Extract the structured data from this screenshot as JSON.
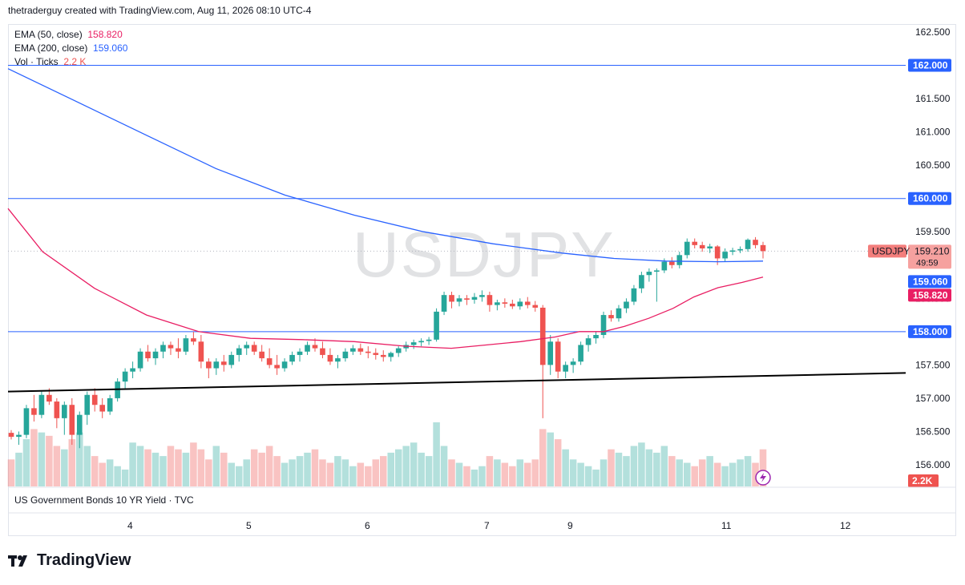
{
  "header": {
    "attribution": "thetraderguy created with TradingView.com, Aug 11, 2026 08:10 UTC-4"
  },
  "symbol": {
    "watermark": "USDJPY",
    "tag": "USDJPY",
    "subtitle": "US Government Bonds 10 YR Yield · TVC"
  },
  "legend": {
    "ema50_label": "EMA (50, close)",
    "ema50_value": "158.820",
    "ema200_label": "EMA (200, close)",
    "ema200_value": "159.060",
    "vol_label": "Vol · Ticks",
    "vol_value": "2.2 K"
  },
  "price_axis": {
    "ticks": [
      "162.500",
      "162.000",
      "161.500",
      "161.000",
      "160.500",
      "160.000",
      "159.500",
      "159.210",
      "49:59",
      "159.060",
      "158.820",
      "158.500",
      "158.000",
      "157.500",
      "157.000",
      "156.500",
      "156.000"
    ],
    "vol_badge": "2.2K"
  },
  "time_axis": {
    "ticks": [
      "4",
      "5",
      "6",
      "7",
      "9",
      "11",
      "12"
    ]
  },
  "logo": {
    "text": "TradingView"
  },
  "colors": {
    "up": "#26a69a",
    "down": "#ef5350",
    "ema50": "#e91e63",
    "ema200": "#2962ff",
    "hline": "#2962ff"
  },
  "chart_data": {
    "type": "candlestick",
    "y_range": [
      155.7,
      162.7
    ],
    "horizontal_lines": [
      162.0,
      160.0,
      158.0
    ],
    "last_price": 159.21,
    "candles": [
      [
        156.48,
        156.52,
        156.38,
        156.42
      ],
      [
        156.42,
        156.5,
        156.3,
        156.45
      ],
      [
        156.45,
        156.9,
        156.4,
        156.85
      ],
      [
        156.85,
        157.05,
        156.65,
        156.75
      ],
      [
        156.75,
        157.1,
        156.7,
        157.05
      ],
      [
        157.05,
        157.15,
        156.9,
        156.95
      ],
      [
        156.95,
        157.0,
        156.55,
        156.7
      ],
      [
        156.7,
        156.95,
        156.45,
        156.9
      ],
      [
        156.9,
        157.0,
        156.3,
        156.45
      ],
      [
        156.45,
        156.8,
        156.25,
        156.75
      ],
      [
        156.75,
        157.1,
        156.6,
        157.05
      ],
      [
        157.05,
        157.15,
        156.8,
        156.9
      ],
      [
        156.9,
        157.0,
        156.7,
        156.8
      ],
      [
        156.8,
        157.05,
        156.75,
        157.0
      ],
      [
        157.0,
        157.3,
        156.95,
        157.25
      ],
      [
        157.25,
        157.45,
        157.15,
        157.4
      ],
      [
        157.4,
        157.55,
        157.3,
        157.45
      ],
      [
        157.45,
        157.75,
        157.4,
        157.7
      ],
      [
        157.7,
        157.8,
        157.55,
        157.6
      ],
      [
        157.6,
        157.75,
        157.5,
        157.7
      ],
      [
        157.7,
        157.85,
        157.6,
        157.8
      ],
      [
        157.8,
        157.85,
        157.65,
        157.75
      ],
      [
        157.75,
        157.9,
        157.6,
        157.7
      ],
      [
        157.7,
        157.95,
        157.65,
        157.9
      ],
      [
        157.9,
        158.0,
        157.8,
        157.85
      ],
      [
        157.85,
        157.95,
        157.45,
        157.55
      ],
      [
        157.55,
        157.6,
        157.3,
        157.45
      ],
      [
        157.45,
        157.6,
        157.35,
        157.55
      ],
      [
        157.55,
        157.65,
        157.4,
        157.5
      ],
      [
        157.5,
        157.7,
        157.45,
        157.65
      ],
      [
        157.65,
        157.8,
        157.55,
        157.75
      ],
      [
        157.75,
        157.85,
        157.65,
        157.8
      ],
      [
        157.8,
        157.85,
        157.65,
        157.7
      ],
      [
        157.7,
        157.8,
        157.55,
        157.6
      ],
      [
        157.6,
        157.75,
        157.45,
        157.5
      ],
      [
        157.5,
        157.65,
        157.35,
        157.45
      ],
      [
        157.45,
        157.6,
        157.4,
        157.55
      ],
      [
        157.55,
        157.7,
        157.5,
        157.65
      ],
      [
        157.65,
        157.75,
        157.55,
        157.7
      ],
      [
        157.7,
        157.85,
        157.65,
        157.8
      ],
      [
        157.8,
        157.9,
        157.7,
        157.75
      ],
      [
        157.75,
        157.85,
        157.6,
        157.65
      ],
      [
        157.65,
        157.75,
        157.5,
        157.55
      ],
      [
        157.55,
        157.65,
        157.45,
        157.6
      ],
      [
        157.6,
        157.75,
        157.55,
        157.7
      ],
      [
        157.7,
        157.8,
        157.65,
        157.75
      ],
      [
        157.75,
        157.82,
        157.65,
        157.7
      ],
      [
        157.7,
        157.78,
        157.6,
        157.68
      ],
      [
        157.68,
        157.75,
        157.58,
        157.65
      ],
      [
        157.65,
        157.72,
        157.55,
        157.62
      ],
      [
        157.62,
        157.7,
        157.55,
        157.68
      ],
      [
        157.68,
        157.78,
        157.62,
        157.75
      ],
      [
        157.75,
        157.85,
        157.7,
        157.8
      ],
      [
        157.8,
        157.88,
        157.74,
        157.84
      ],
      [
        157.84,
        157.9,
        157.78,
        157.86
      ],
      [
        157.86,
        157.92,
        157.8,
        157.88
      ],
      [
        157.88,
        158.35,
        157.85,
        158.3
      ],
      [
        158.3,
        158.6,
        158.25,
        158.55
      ],
      [
        158.55,
        158.6,
        158.35,
        158.45
      ],
      [
        158.45,
        158.55,
        158.38,
        158.5
      ],
      [
        158.5,
        158.55,
        158.4,
        158.48
      ],
      [
        158.48,
        158.58,
        158.42,
        158.52
      ],
      [
        158.52,
        158.62,
        158.45,
        158.55
      ],
      [
        158.55,
        158.6,
        158.3,
        158.4
      ],
      [
        158.4,
        158.48,
        158.32,
        158.44
      ],
      [
        158.44,
        158.5,
        158.36,
        158.42
      ],
      [
        158.42,
        158.48,
        158.34,
        158.38
      ],
      [
        158.38,
        158.5,
        158.33,
        158.45
      ],
      [
        158.45,
        158.52,
        158.35,
        158.4
      ],
      [
        158.4,
        158.46,
        158.3,
        158.36
      ],
      [
        158.36,
        158.4,
        156.7,
        157.5
      ],
      [
        157.5,
        157.95,
        157.35,
        157.85
      ],
      [
        157.85,
        157.9,
        157.3,
        157.4
      ],
      [
        157.4,
        157.55,
        157.3,
        157.5
      ],
      [
        157.5,
        157.6,
        157.38,
        157.55
      ],
      [
        157.55,
        157.85,
        157.5,
        157.8
      ],
      [
        157.8,
        157.95,
        157.7,
        157.9
      ],
      [
        157.9,
        158.0,
        157.82,
        157.95
      ],
      [
        157.95,
        158.3,
        157.9,
        158.25
      ],
      [
        158.25,
        158.32,
        158.15,
        158.2
      ],
      [
        158.2,
        158.4,
        158.15,
        158.35
      ],
      [
        158.35,
        158.5,
        158.28,
        158.45
      ],
      [
        158.45,
        158.7,
        158.4,
        158.65
      ],
      [
        158.65,
        158.9,
        158.58,
        158.85
      ],
      [
        158.85,
        158.95,
        158.75,
        158.9
      ],
      [
        158.9,
        158.95,
        158.45,
        158.92
      ],
      [
        158.92,
        159.1,
        158.88,
        159.05
      ],
      [
        159.05,
        159.12,
        158.95,
        159.0
      ],
      [
        159.0,
        159.2,
        158.95,
        159.15
      ],
      [
        159.15,
        159.4,
        159.1,
        159.35
      ],
      [
        159.35,
        159.4,
        159.25,
        159.3
      ],
      [
        159.3,
        159.35,
        159.2,
        159.25
      ],
      [
        159.25,
        159.32,
        159.18,
        159.28
      ],
      [
        159.28,
        159.3,
        159.0,
        159.1
      ],
      [
        159.1,
        159.25,
        159.05,
        159.2
      ],
      [
        159.2,
        159.26,
        159.15,
        159.22
      ],
      [
        159.22,
        159.28,
        159.18,
        159.24
      ],
      [
        159.24,
        159.4,
        159.2,
        159.38
      ],
      [
        159.38,
        159.42,
        159.25,
        159.3
      ],
      [
        159.3,
        159.35,
        159.1,
        159.21
      ]
    ],
    "volume": [
      40,
      50,
      70,
      85,
      80,
      75,
      60,
      55,
      70,
      80,
      60,
      45,
      35,
      40,
      30,
      25,
      65,
      60,
      55,
      50,
      45,
      60,
      55,
      50,
      65,
      55,
      40,
      60,
      50,
      35,
      30,
      40,
      55,
      50,
      60,
      45,
      35,
      40,
      45,
      50,
      55,
      40,
      35,
      45,
      40,
      30,
      35,
      30,
      40,
      45,
      50,
      55,
      60,
      65,
      50,
      45,
      95,
      60,
      40,
      35,
      30,
      25,
      30,
      45,
      40,
      35,
      30,
      40,
      35,
      40,
      85,
      80,
      70,
      55,
      40,
      35,
      30,
      25,
      40,
      55,
      50,
      45,
      60,
      65,
      55,
      50,
      60,
      45,
      40,
      35,
      30,
      40,
      45,
      35,
      30,
      35,
      40,
      45,
      35,
      55
    ],
    "ema50_visual": [
      [
        0,
        159.85
      ],
      [
        10,
        159.2
      ],
      [
        25,
        158.65
      ],
      [
        40,
        158.25
      ],
      [
        55,
        158.0
      ],
      [
        70,
        157.9
      ],
      [
        85,
        157.88
      ],
      [
        100,
        157.85
      ],
      [
        115,
        157.78
      ],
      [
        128,
        157.75
      ],
      [
        138,
        157.8
      ],
      [
        148,
        157.85
      ],
      [
        158,
        157.92
      ],
      [
        165,
        158.0
      ],
      [
        172,
        158.0
      ],
      [
        178,
        158.08
      ],
      [
        185,
        158.2
      ],
      [
        192,
        158.35
      ],
      [
        198,
        158.52
      ],
      [
        205,
        158.66
      ],
      [
        212,
        158.74
      ],
      [
        218,
        158.82
      ]
    ],
    "ema200_visual": [
      [
        0,
        161.95
      ],
      [
        20,
        161.45
      ],
      [
        40,
        160.95
      ],
      [
        60,
        160.45
      ],
      [
        80,
        160.05
      ],
      [
        100,
        159.75
      ],
      [
        120,
        159.5
      ],
      [
        140,
        159.32
      ],
      [
        160,
        159.18
      ],
      [
        175,
        159.1
      ],
      [
        190,
        159.06
      ],
      [
        205,
        159.05
      ],
      [
        218,
        159.06
      ]
    ],
    "trendline": [
      [
        156.1,
        157.1
      ],
      [
        1130,
        157.38
      ]
    ]
  }
}
